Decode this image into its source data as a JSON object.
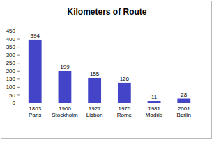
{
  "chart_data": {
    "type": "bar",
    "title": "Kilometers of Route",
    "categories": [
      "1863\nParis",
      "1900\nStockholm",
      "1927\nLisbon",
      "1976\nRome",
      "1981\nMadrid",
      "2001\nBerlin"
    ],
    "values": [
      394,
      199,
      155,
      126,
      11,
      28
    ],
    "color": "#4444c8",
    "ylim": [
      0,
      450
    ],
    "yticks": [
      0,
      50,
      100,
      150,
      200,
      250,
      300,
      350,
      400,
      450
    ],
    "grid": false,
    "data_labels": true
  }
}
